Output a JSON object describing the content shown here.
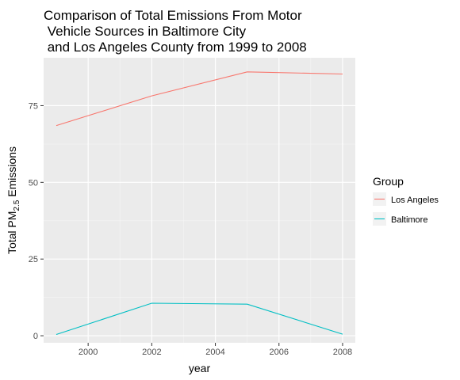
{
  "chart_data": {
    "type": "line",
    "title_lines": [
      "Comparison of Total Emissions From Motor",
      " Vehicle Sources in Baltimore City",
      " and Los Angeles County from 1999 to 2008"
    ],
    "xlabel": "year",
    "ylabel_prefix": "Total PM",
    "ylabel_subscript": "2.5",
    "ylabel_suffix": " Emissions",
    "x_ticks": [
      2000,
      2002,
      2004,
      2006,
      2008
    ],
    "y_ticks": [
      0,
      25,
      50,
      75
    ],
    "xlim": [
      1998.6,
      2008.4
    ],
    "ylim": [
      -2.3,
      90.6
    ],
    "grid": true,
    "legend_position": "right",
    "legend_title": "Group",
    "series": [
      {
        "name": "Los Angeles",
        "color": "#F8766D",
        "x": [
          1999,
          2002,
          2005,
          2008
        ],
        "y": [
          68.5,
          78.2,
          86.0,
          85.3
        ]
      },
      {
        "name": "Baltimore",
        "color": "#00BFC4",
        "x": [
          1999,
          2002,
          2005,
          2008
        ],
        "y": [
          0.4,
          10.6,
          10.3,
          0.5
        ]
      }
    ]
  }
}
